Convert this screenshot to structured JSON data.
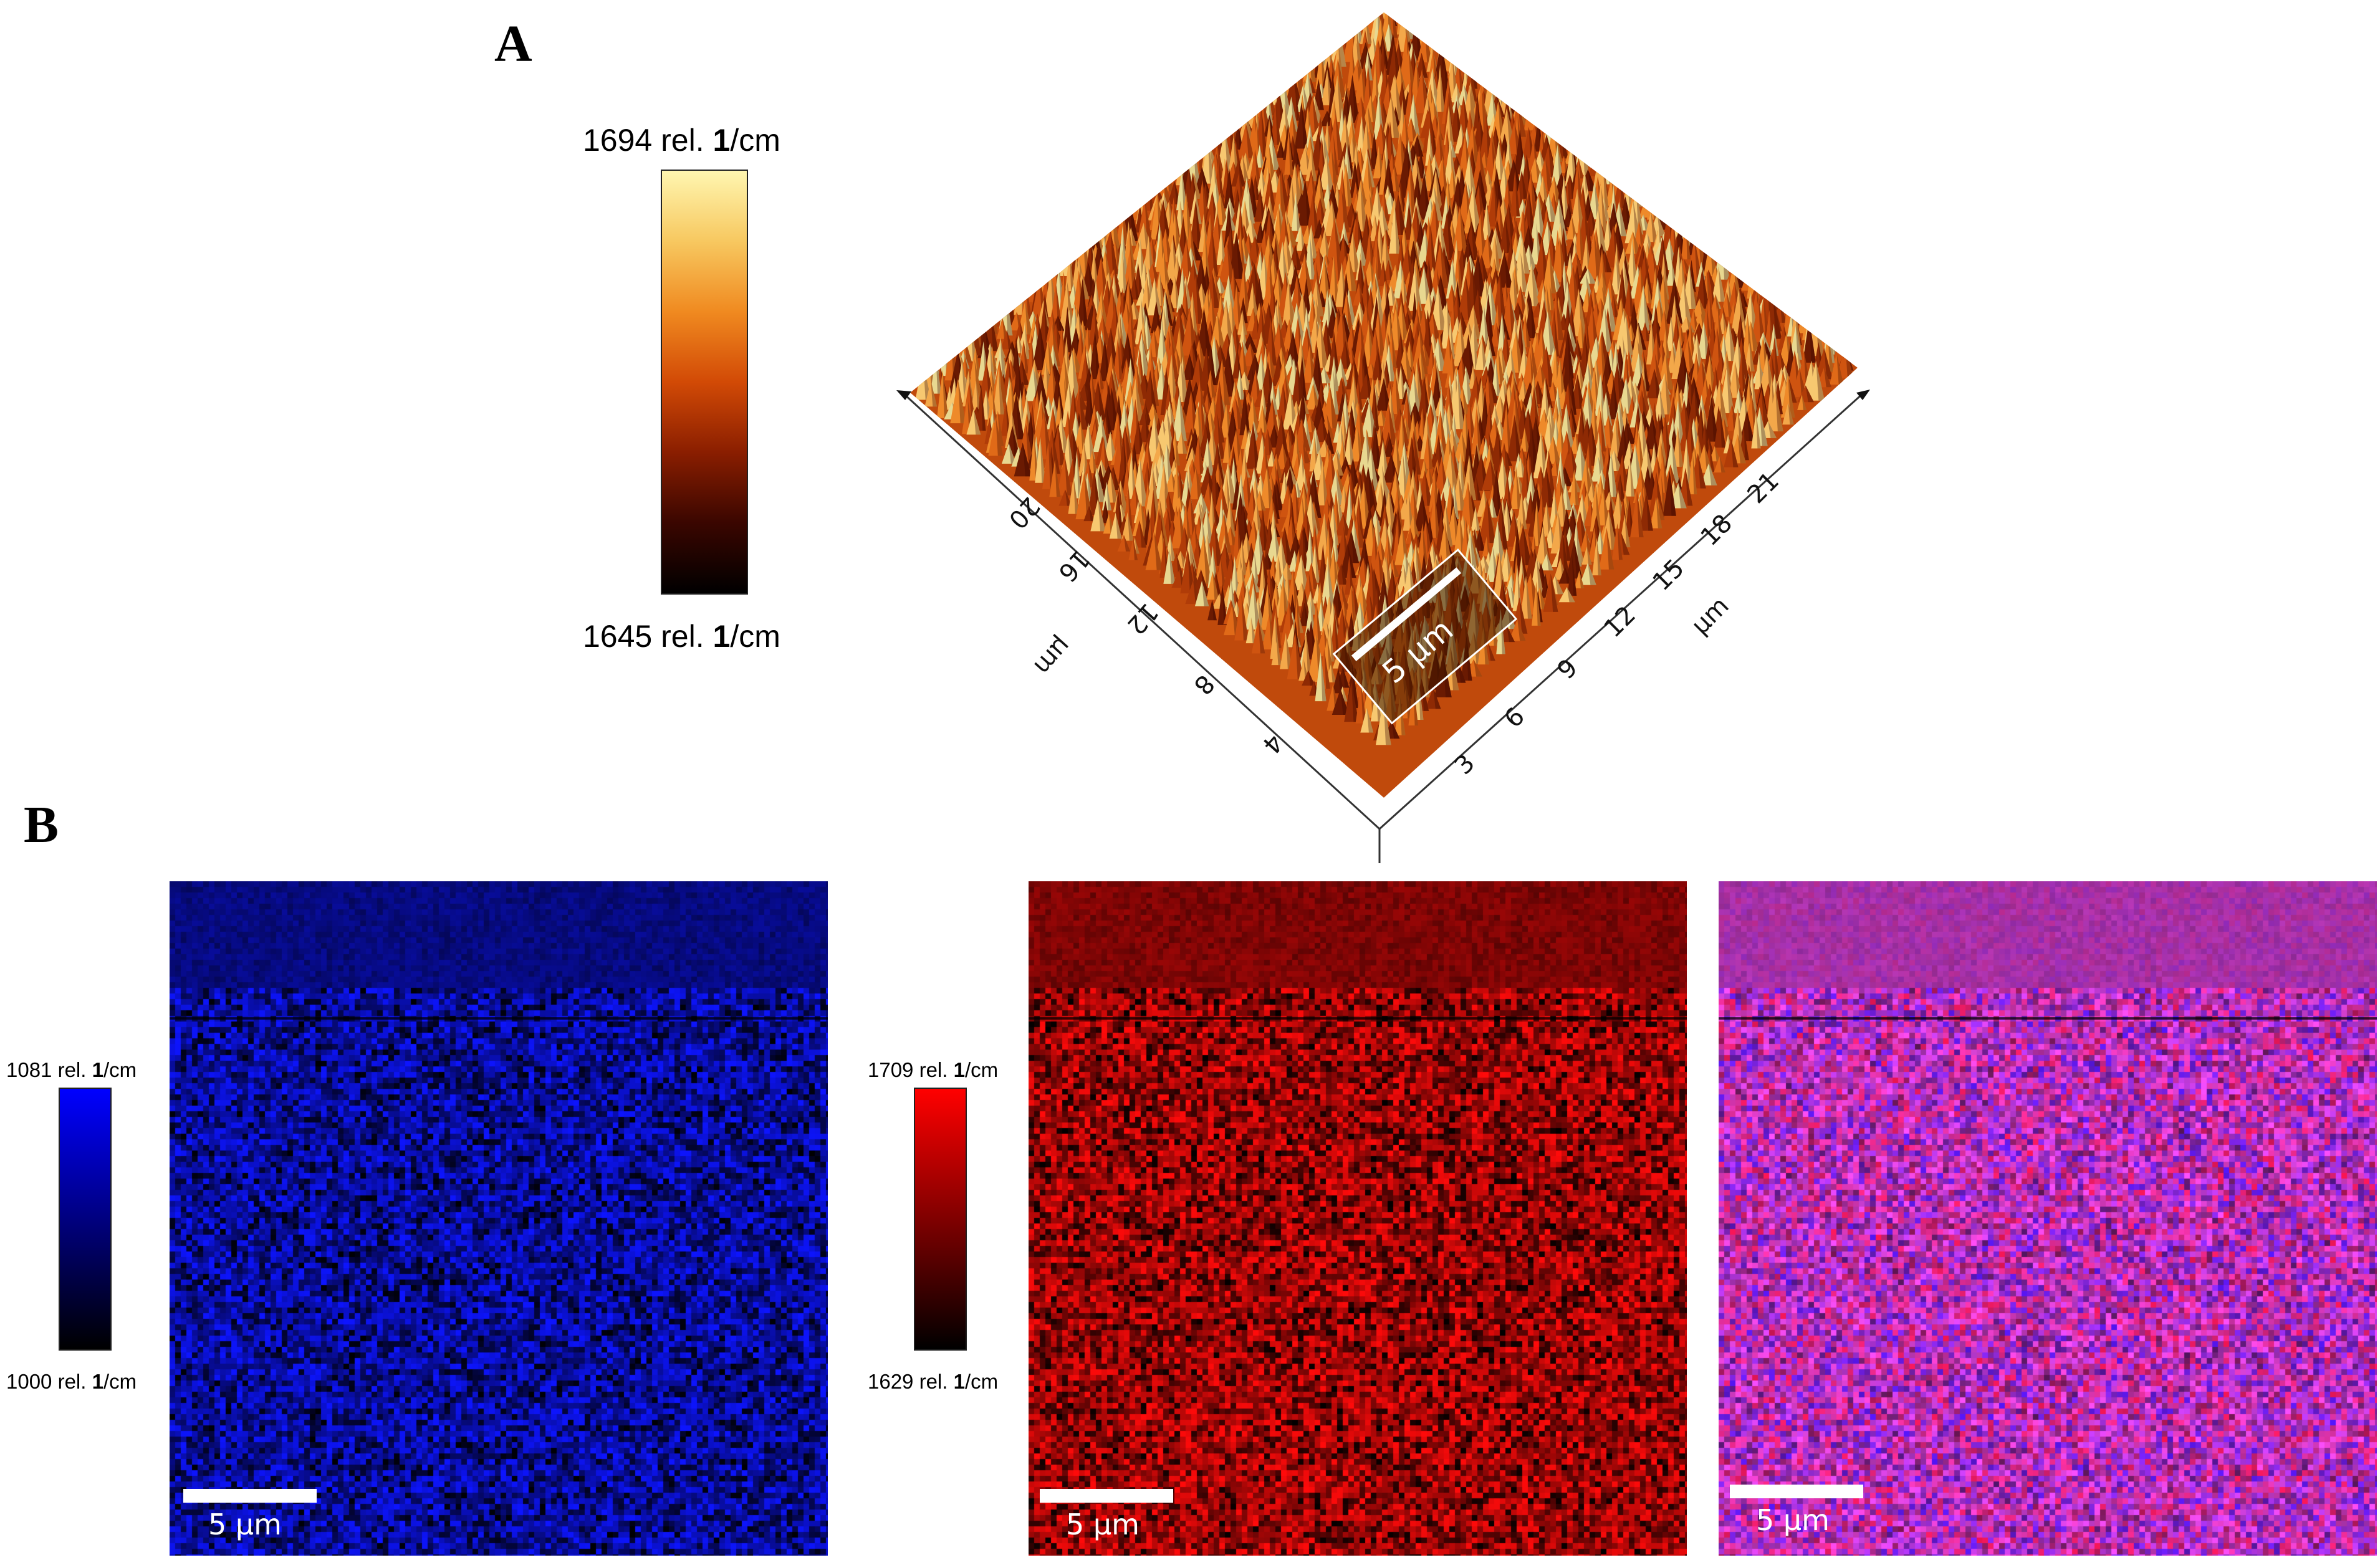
{
  "panel_a": {
    "letter": "A",
    "colorbar": {
      "max_label": "1694 rel.",
      "min_label": "1645 rel.",
      "unit_bold": "1",
      "unit_rest": "/cm",
      "gradient": [
        "#000000",
        "#3a0600",
        "#8a1e00",
        "#d24a06",
        "#f08a20",
        "#f7c860",
        "#fff6b0"
      ]
    },
    "surface": {
      "left_axis_ticks": [
        "20",
        "16",
        "12",
        "8",
        "4"
      ],
      "left_axis_unit": "µm",
      "right_axis_ticks": [
        "21",
        "18",
        "15",
        "12",
        "9",
        "6",
        "3"
      ],
      "right_axis_unit": "µm",
      "scale_bar_label": "5 µm"
    }
  },
  "panel_b": {
    "letter": "B",
    "blue_map": {
      "colorbar_max": "1081 rel.",
      "colorbar_min": "1000 rel.",
      "unit_bold": "1",
      "unit_rest": "/cm",
      "color": "#0a14ff",
      "scale_bar_label": "5 µm"
    },
    "red_map": {
      "colorbar_max": "1709 rel.",
      "colorbar_min": "1629 rel.",
      "unit_bold": "1",
      "unit_rest": "/cm",
      "color": "#ff0a0a",
      "scale_bar_label": "5 µm"
    },
    "overlay_map": {
      "scale_bar_label": "5 µm"
    }
  }
}
